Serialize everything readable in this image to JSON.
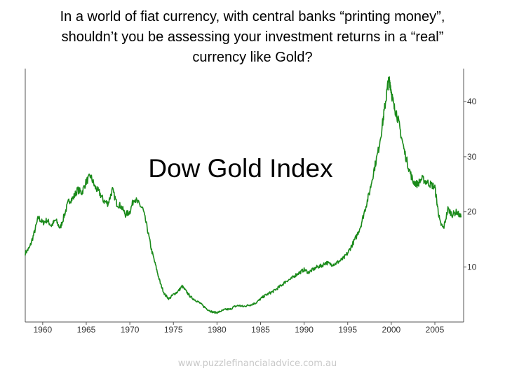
{
  "slide": {
    "title_lines": [
      "In a world of fiat currency, with central banks “printing money”,",
      "shouldn’t you be assessing your investment returns in a “real”",
      "currency like Gold?"
    ],
    "footer": "www.puzzlefinancialadvice.com.au"
  },
  "chart_data": {
    "type": "line",
    "title": "Dow Gold Index",
    "xlabel": "",
    "ylabel": "",
    "xlim": [
      1958,
      2008.3
    ],
    "ylim": [
      0,
      46
    ],
    "x_ticks": [
      1960,
      1965,
      1970,
      1975,
      1980,
      1985,
      1990,
      1995,
      2000,
      2005
    ],
    "x_tick_labels": [
      "1960",
      "1965",
      "1970",
      "1975",
      "1980",
      "1985",
      "1990",
      "1995",
      "2000",
      "2005"
    ],
    "y_ticks": [
      10,
      20,
      30,
      40
    ],
    "y_tick_labels": [
      "10",
      "20",
      "30",
      "40"
    ],
    "grid": false,
    "line_color": "#1a8a1a",
    "series": [
      {
        "name": "",
        "x": [
          1958.0,
          1958.5,
          1959.0,
          1959.5,
          1960.0,
          1960.5,
          1961.0,
          1961.5,
          1962.0,
          1962.5,
          1963.0,
          1963.5,
          1964.0,
          1964.5,
          1965.0,
          1965.5,
          1966.0,
          1966.5,
          1967.0,
          1967.5,
          1968.0,
          1968.5,
          1969.0,
          1969.5,
          1970.0,
          1970.5,
          1971.0,
          1971.5,
          1972.0,
          1972.5,
          1973.0,
          1973.5,
          1974.0,
          1974.5,
          1975.0,
          1975.5,
          1976.0,
          1976.5,
          1977.0,
          1977.5,
          1978.0,
          1978.5,
          1979.0,
          1979.5,
          1980.0,
          1980.5,
          1981.0,
          1981.5,
          1982.0,
          1982.5,
          1983.0,
          1983.5,
          1984.0,
          1984.5,
          1985.0,
          1985.5,
          1986.0,
          1986.5,
          1987.0,
          1987.5,
          1988.0,
          1988.5,
          1989.0,
          1989.5,
          1990.0,
          1990.5,
          1991.0,
          1991.5,
          1992.0,
          1992.5,
          1993.0,
          1993.5,
          1994.0,
          1994.5,
          1995.0,
          1995.5,
          1996.0,
          1996.5,
          1997.0,
          1997.5,
          1998.0,
          1998.5,
          1999.0,
          1999.3,
          1999.6,
          1999.8,
          2000.0,
          2000.3,
          2000.6,
          2001.0,
          2001.5,
          2002.0,
          2002.5,
          2003.0,
          2003.5,
          2004.0,
          2004.5,
          2005.0,
          2005.3,
          2005.6,
          2006.0,
          2006.5,
          2007.0,
          2007.5,
          2008.0
        ],
        "y": [
          12.5,
          13.5,
          16.0,
          19.0,
          18.0,
          18.5,
          17.5,
          18.5,
          17.0,
          19.5,
          22.0,
          22.5,
          24.0,
          23.5,
          25.5,
          26.5,
          24.5,
          23.5,
          22.0,
          21.5,
          24.0,
          21.5,
          21.0,
          19.5,
          20.0,
          22.5,
          21.5,
          20.5,
          17.0,
          13.0,
          10.0,
          7.0,
          5.0,
          4.2,
          5.0,
          5.5,
          6.5,
          5.5,
          4.5,
          4.0,
          3.5,
          2.8,
          2.2,
          1.8,
          1.7,
          2.0,
          2.3,
          2.3,
          2.8,
          3.0,
          2.8,
          3.0,
          3.2,
          3.5,
          4.2,
          4.8,
          5.2,
          5.6,
          6.2,
          6.8,
          7.5,
          7.8,
          8.5,
          9.0,
          9.5,
          9.0,
          9.5,
          10.0,
          10.2,
          10.8,
          10.5,
          10.5,
          11.0,
          11.5,
          12.5,
          14.0,
          15.5,
          17.5,
          20.5,
          23.5,
          27.5,
          31.0,
          36.0,
          39.5,
          43.0,
          44.0,
          42.0,
          39.0,
          38.0,
          35.0,
          31.0,
          28.0,
          25.5,
          25.0,
          26.0,
          25.5,
          25.0,
          24.5,
          21.0,
          18.0,
          17.0,
          20.5,
          19.5,
          20.0,
          19.0
        ]
      }
    ]
  }
}
